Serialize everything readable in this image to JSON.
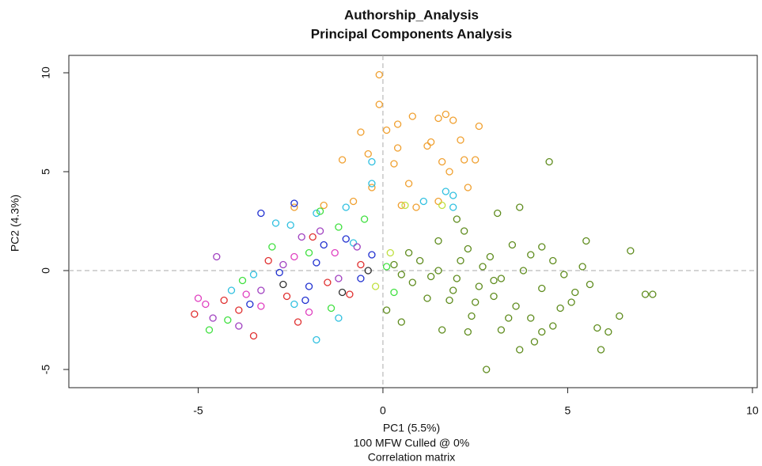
{
  "chart_data": {
    "type": "scatter",
    "title": "Authorship_Analysis",
    "subtitle": "Principal Components Analysis",
    "xlabel": "PC1 (5.5%)",
    "captions": [
      "100 MFW  Culled @ 0%",
      "Correlation matrix"
    ],
    "ylabel": "PC2 (4.3%)",
    "xlim": [
      -8.5,
      10.13
    ],
    "ylim": [
      -5.92,
      10.88
    ],
    "xticks": [
      -5,
      0,
      5,
      10
    ],
    "yticks": [
      -5,
      0,
      5,
      10
    ],
    "reference_x": 0,
    "reference_y": 0,
    "series": [
      {
        "color": "#5f8c1e",
        "x": [
          4.5,
          6.7,
          7.1,
          7.3,
          2.8,
          3.7,
          5.9,
          3.1,
          3.7,
          2,
          5.5,
          4.6,
          5.4,
          5.6,
          6.1,
          5.8,
          6.4,
          4.3,
          4.1,
          3.2,
          2.3,
          1.6,
          0.5,
          0.1,
          0.5,
          1,
          1.5,
          2.3,
          2.9,
          3.5,
          4,
          4.3,
          3.2,
          2.6,
          1.8,
          1.2,
          0.8,
          1.5,
          2,
          2.5,
          3,
          3.6,
          4,
          4.8,
          5.2,
          4.9,
          4.3,
          3.8,
          2.7,
          2.1,
          1.3,
          0.7,
          2.4,
          3.4,
          4.6,
          3,
          1.9,
          0.3,
          5.1,
          2.2
        ],
        "y": [
          5.5,
          1,
          -1.2,
          -1.2,
          -5,
          -4,
          -4,
          2.9,
          3.2,
          2.6,
          1.5,
          0.5,
          0.2,
          -0.7,
          -3.1,
          -2.9,
          -2.3,
          -3.1,
          -3.6,
          -3,
          -3.1,
          -3,
          -2.6,
          -2,
          -0.2,
          0.5,
          1.5,
          1.1,
          0.7,
          1.3,
          0.8,
          1.2,
          -0.4,
          -0.8,
          -1.5,
          -1.4,
          -0.6,
          0,
          -0.4,
          -1.6,
          -1.3,
          -1.8,
          -2.4,
          -1.9,
          -1.1,
          -0.2,
          -0.9,
          0,
          0.2,
          0.5,
          -0.3,
          0.9,
          -2.3,
          -2.4,
          -2.8,
          -0.5,
          -1,
          0.3,
          -1.6,
          2
        ]
      },
      {
        "color": "#f0a030",
        "x": [
          -0.1,
          -0.1,
          1.5,
          1.9,
          1.7,
          2.6,
          0.8,
          0.4,
          -0.6,
          -0.4,
          -1.1,
          0.3,
          0.7,
          1.3,
          2.1,
          2.2,
          2.5,
          1.8,
          1.5,
          0.5,
          -0.3,
          -2.4,
          -1.6,
          0.9,
          0.4,
          1.2,
          0.1,
          -0.8,
          1.6,
          2.3
        ],
        "y": [
          9.9,
          8.4,
          7.7,
          7.6,
          7.9,
          7.3,
          7.8,
          7.4,
          7,
          5.9,
          5.6,
          5.4,
          4.4,
          6.5,
          6.6,
          5.6,
          5.6,
          5,
          3.5,
          3.3,
          4.2,
          3.2,
          3.3,
          3.2,
          6.2,
          6.3,
          7.1,
          3.5,
          5.5,
          4.2
        ]
      },
      {
        "color": "#30c0e0",
        "x": [
          -2.5,
          -1.8,
          -0.3,
          -0.3,
          1.7,
          1.9,
          1.9,
          -1,
          -1.8,
          -2.9,
          -3.5,
          -2.4,
          -1.2,
          -0.8,
          -4.1,
          1.1
        ],
        "y": [
          2.3,
          -3.5,
          5.5,
          4.4,
          4,
          3.8,
          3.2,
          3.2,
          2.9,
          2.4,
          -0.2,
          -1.7,
          -2.4,
          1.4,
          -1,
          3.5
        ]
      },
      {
        "color": "#2030d0",
        "x": [
          -3.3,
          -2.4,
          -1.6,
          -2.8,
          -0.6,
          -2.1,
          -1,
          -3.6,
          -1.8,
          -0.3,
          -2
        ],
        "y": [
          2.9,
          3.4,
          1.3,
          -0.1,
          -0.4,
          -1.5,
          1.6,
          -1.7,
          0.4,
          0.8,
          -0.8
        ]
      },
      {
        "color": "#e03030",
        "x": [
          -5.1,
          -3.5,
          -3.9,
          -2.6,
          -1.5,
          -0.6,
          -3.1,
          -1.9,
          -0.9,
          -4.3,
          -2.3
        ],
        "y": [
          -2.2,
          -3.3,
          -2,
          -1.3,
          -0.6,
          0.3,
          0.5,
          1.7,
          -1.2,
          -1.5,
          -2.6
        ]
      },
      {
        "color": "#a040c0",
        "x": [
          -3.9,
          -4.5,
          -2.2,
          -1.2,
          -0.7,
          -3.3,
          -1.7,
          -2.7,
          -4.6
        ],
        "y": [
          -2.8,
          0.7,
          1.7,
          -0.4,
          1.2,
          -1,
          2,
          0.3,
          -2.4
        ]
      },
      {
        "color": "#40e040",
        "x": [
          -4.7,
          -4.2,
          -3,
          -1.7,
          -1.2,
          -0.5,
          0.3,
          -2,
          -3.8,
          -1.4,
          0.1
        ],
        "y": [
          -3,
          -2.5,
          1.2,
          3,
          2.2,
          2.6,
          -1.1,
          0.9,
          -0.5,
          -1.9,
          0.2
        ]
      },
      {
        "color": "#e040c0",
        "x": [
          -5,
          -4.8,
          -3.7,
          -2.4,
          -1.3,
          -3.3,
          -2
        ],
        "y": [
          -1.4,
          -1.7,
          -1.2,
          0.7,
          0.9,
          -1.8,
          -2.1
        ]
      },
      {
        "color": "#c0e040",
        "x": [
          0.6,
          1.6,
          0.2,
          -0.2
        ],
        "y": [
          3.3,
          3.3,
          0.9,
          -0.8
        ]
      },
      {
        "color": "#303030",
        "x": [
          -1.1,
          -2.7,
          -0.4
        ],
        "y": [
          -1.1,
          -0.7,
          0
        ]
      }
    ]
  }
}
